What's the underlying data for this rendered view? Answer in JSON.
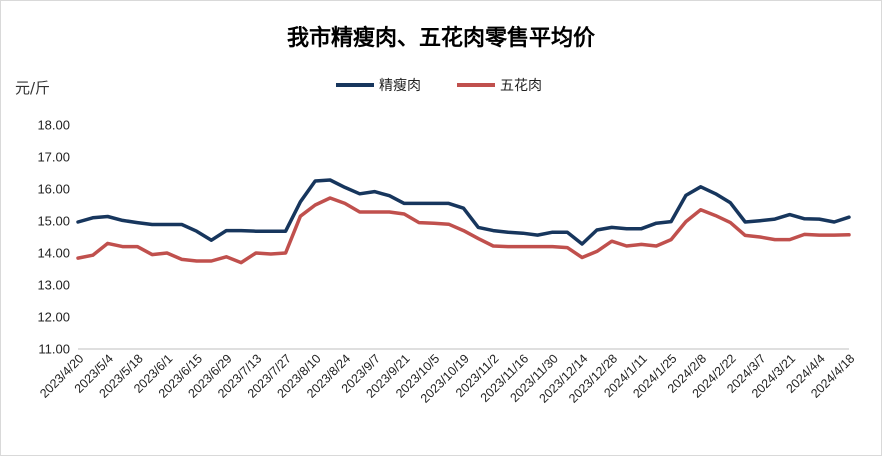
{
  "chart_data": {
    "type": "line",
    "title": "我市精瘦肉、五花肉零售平均价",
    "unit_label": "元/斤",
    "ylim": [
      11,
      18
    ],
    "yticks": [
      "11.00",
      "12.00",
      "13.00",
      "14.00",
      "15.00",
      "16.00",
      "17.00",
      "18.00"
    ],
    "legend_position": "top-center",
    "grid": false,
    "x": [
      "2023/4/20",
      "2023/4/27",
      "2023/5/4",
      "2023/5/11",
      "2023/5/18",
      "2023/5/25",
      "2023/6/1",
      "2023/6/8",
      "2023/6/15",
      "2023/6/22",
      "2023/6/29",
      "2023/7/6",
      "2023/7/13",
      "2023/7/20",
      "2023/7/27",
      "2023/8/3",
      "2023/8/10",
      "2023/8/17",
      "2023/8/24",
      "2023/8/31",
      "2023/9/7",
      "2023/9/14",
      "2023/9/21",
      "2023/9/28",
      "2023/10/5",
      "2023/10/12",
      "2023/10/19",
      "2023/10/26",
      "2023/11/2",
      "2023/11/9",
      "2023/11/16",
      "2023/11/23",
      "2023/11/30",
      "2023/12/7",
      "2023/12/14",
      "2023/12/21",
      "2023/12/28",
      "2024/1/4",
      "2024/1/11",
      "2024/1/18",
      "2024/1/25",
      "2024/2/1",
      "2024/2/8",
      "2024/2/15",
      "2024/2/22",
      "2024/2/29",
      "2024/3/7",
      "2024/3/14",
      "2024/3/21",
      "2024/3/28",
      "2024/4/4",
      "2024/4/11",
      "2024/4/18"
    ],
    "xtick_labels": [
      "2023/4/20",
      "2023/5/4",
      "2023/5/18",
      "2023/6/1",
      "2023/6/15",
      "2023/6/29",
      "2023/7/13",
      "2023/7/27",
      "2023/8/10",
      "2023/8/24",
      "2023/9/7",
      "2023/9/21",
      "2023/10/5",
      "2023/10/19",
      "2023/11/2",
      "2023/11/16",
      "2023/11/30",
      "2023/12/14",
      "2023/12/28",
      "2024/1/11",
      "2024/1/25",
      "2024/2/8",
      "2024/2/22",
      "2024/3/7",
      "2024/3/21",
      "2024/4/4",
      "2024/4/18"
    ],
    "series": [
      {
        "name": "精瘦肉",
        "color": "#17365d",
        "values": [
          14.97,
          15.1,
          15.14,
          15.02,
          14.95,
          14.89,
          14.89,
          14.89,
          14.68,
          14.4,
          14.7,
          14.7,
          14.68,
          14.68,
          14.68,
          15.6,
          16.25,
          16.28,
          16.05,
          15.85,
          15.92,
          15.79,
          15.55,
          15.55,
          15.55,
          15.55,
          15.4,
          14.8,
          14.7,
          14.65,
          14.62,
          14.56,
          14.65,
          14.65,
          14.28,
          14.72,
          14.8,
          14.76,
          14.76,
          14.93,
          14.98,
          15.8,
          16.07,
          15.85,
          15.57,
          14.97,
          15.01,
          15.06,
          15.2,
          15.07,
          15.06,
          14.97,
          15.12
        ]
      },
      {
        "name": "五花肉",
        "color": "#c0504d",
        "values": [
          13.84,
          13.93,
          14.3,
          14.2,
          14.2,
          13.95,
          14.0,
          13.8,
          13.75,
          13.75,
          13.88,
          13.7,
          14.0,
          13.97,
          14.0,
          15.15,
          15.5,
          15.72,
          15.55,
          15.28,
          15.28,
          15.28,
          15.22,
          14.95,
          14.93,
          14.9,
          14.7,
          14.45,
          14.22,
          14.2,
          14.2,
          14.2,
          14.2,
          14.17,
          13.86,
          14.05,
          14.37,
          14.22,
          14.27,
          14.22,
          14.42,
          14.98,
          15.35,
          15.17,
          14.95,
          14.55,
          14.5,
          14.42,
          14.42,
          14.58,
          14.56,
          14.56,
          14.57
        ]
      }
    ]
  }
}
